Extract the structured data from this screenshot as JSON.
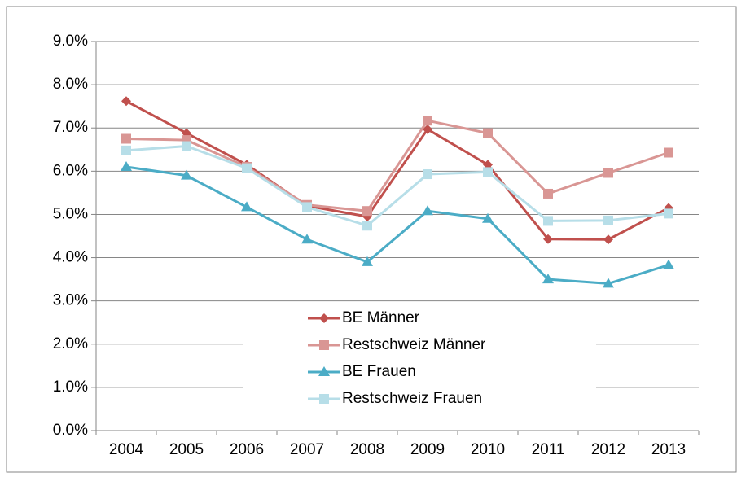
{
  "chart_data": {
    "type": "line",
    "categories": [
      "2004",
      "2005",
      "2006",
      "2007",
      "2008",
      "2009",
      "2010",
      "2011",
      "2012",
      "2013"
    ],
    "series": [
      {
        "name": "BE Männer",
        "color": "#c0504d",
        "marker": "diamond",
        "values": [
          7.62,
          6.88,
          6.15,
          5.2,
          4.95,
          6.97,
          6.15,
          4.43,
          4.42,
          5.15
        ]
      },
      {
        "name": "Restschweiz Männer",
        "color": "#d99694",
        "marker": "square",
        "values": [
          6.75,
          6.72,
          6.1,
          5.22,
          5.08,
          7.17,
          6.88,
          5.48,
          5.96,
          6.43
        ]
      },
      {
        "name": "BE Frauen",
        "color": "#4bacc6",
        "marker": "triangle",
        "values": [
          6.1,
          5.9,
          5.17,
          4.42,
          3.9,
          5.08,
          4.9,
          3.5,
          3.4,
          3.83
        ]
      },
      {
        "name": "Restschweiz Frauen",
        "color": "#b7dee8",
        "marker": "square",
        "values": [
          6.48,
          6.58,
          6.07,
          5.17,
          4.74,
          5.93,
          5.98,
          4.85,
          4.86,
          5.02
        ]
      }
    ],
    "ylim": [
      0,
      9
    ],
    "yticks": [
      {
        "value": 0,
        "label": "0.0%"
      },
      {
        "value": 1,
        "label": "1.0%"
      },
      {
        "value": 2,
        "label": "2.0%"
      },
      {
        "value": 3,
        "label": "3.0%"
      },
      {
        "value": 4,
        "label": "4.0%"
      },
      {
        "value": 5,
        "label": "5.0%"
      },
      {
        "value": 6,
        "label": "6.0%"
      },
      {
        "value": 7,
        "label": "7.0%"
      },
      {
        "value": 8,
        "label": "8.0%"
      },
      {
        "value": 9,
        "label": "9.0%"
      }
    ],
    "grid": true,
    "legend": "center"
  }
}
